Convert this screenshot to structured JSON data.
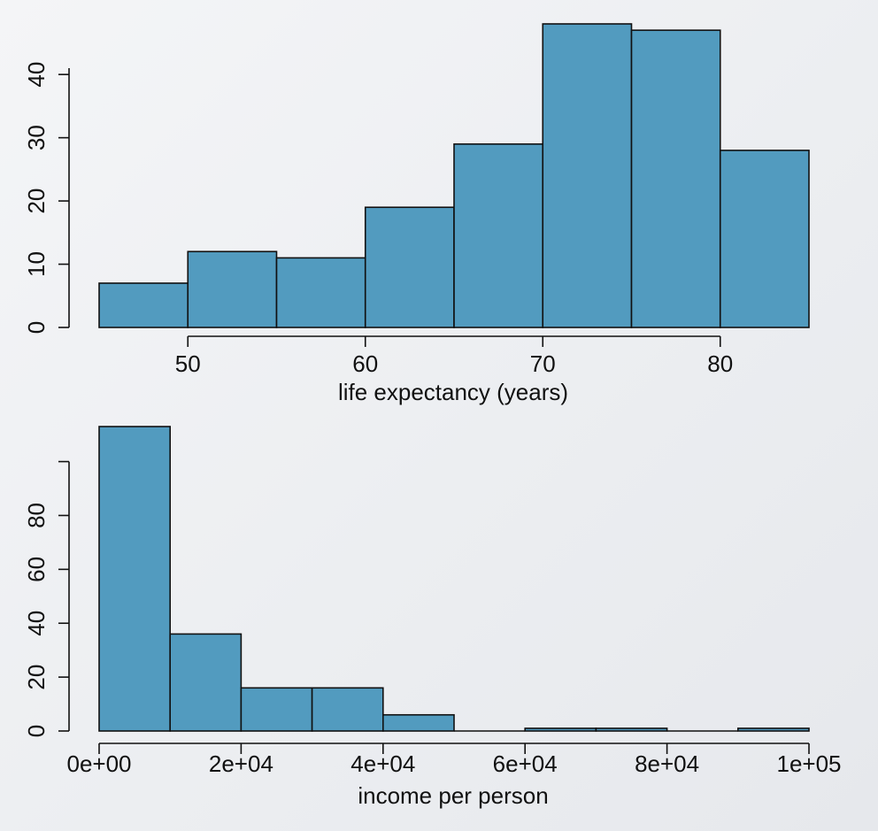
{
  "chart_data": [
    {
      "type": "bar",
      "subtype": "histogram",
      "title": "",
      "xlabel": "life expectancy (years)",
      "ylabel": "",
      "bins": [
        [
          45,
          50
        ],
        [
          50,
          55
        ],
        [
          55,
          60
        ],
        [
          60,
          65
        ],
        [
          65,
          70
        ],
        [
          70,
          75
        ],
        [
          75,
          80
        ],
        [
          80,
          85
        ]
      ],
      "values": [
        7,
        12,
        11,
        19,
        29,
        48,
        47,
        28
      ],
      "xlim": [
        45,
        85
      ],
      "ylim": [
        0,
        48
      ],
      "x_ticks": [
        50,
        60,
        70,
        80
      ],
      "x_tick_labels": [
        "50",
        "60",
        "70",
        "80"
      ],
      "y_ticks": [
        0,
        10,
        20,
        30,
        40
      ],
      "y_tick_labels": [
        "0",
        "10",
        "20",
        "30",
        "40"
      ],
      "bar_color": "#529bbf",
      "grid": false
    },
    {
      "type": "bar",
      "subtype": "histogram",
      "title": "",
      "xlabel": "income per person",
      "ylabel": "",
      "bins": [
        [
          0,
          10000
        ],
        [
          10000,
          20000
        ],
        [
          20000,
          30000
        ],
        [
          30000,
          40000
        ],
        [
          40000,
          50000
        ],
        [
          50000,
          60000
        ],
        [
          60000,
          70000
        ],
        [
          70000,
          80000
        ],
        [
          80000,
          90000
        ],
        [
          90000,
          100000
        ]
      ],
      "values": [
        113,
        36,
        16,
        16,
        6,
        0,
        1,
        1,
        0,
        1
      ],
      "xlim": [
        0,
        100000
      ],
      "ylim": [
        0,
        113
      ],
      "x_ticks": [
        0,
        20000,
        40000,
        60000,
        80000,
        100000
      ],
      "x_tick_labels": [
        "0e+00",
        "2e+04",
        "4e+04",
        "6e+04",
        "8e+04",
        "1e+05"
      ],
      "y_ticks": [
        0,
        20,
        40,
        60,
        80
      ],
      "y_tick_labels": [
        "0",
        "20",
        "40",
        "60",
        "80"
      ],
      "bar_color": "#529bbf",
      "grid": false
    }
  ]
}
